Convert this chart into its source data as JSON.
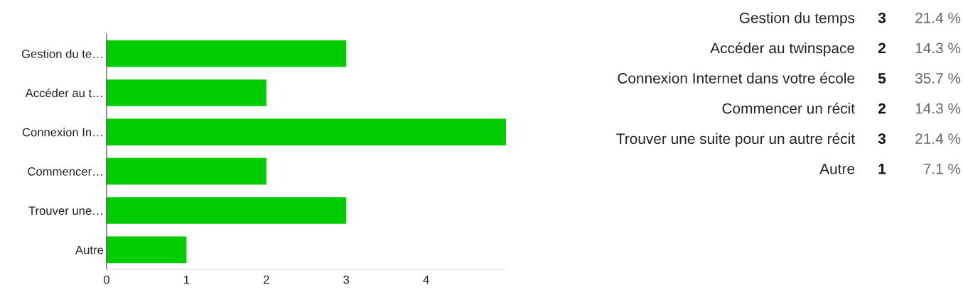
{
  "chart_data": [
    {
      "type": "bar",
      "orientation": "horizontal",
      "categories": [
        "Gestion du te…",
        "Accéder au t…",
        "Connexion In…",
        "Commencer…",
        "Trouver une…",
        "Autre"
      ],
      "values": [
        3,
        2,
        5,
        2,
        3,
        1
      ],
      "color": "#00cc00",
      "xlim": [
        0,
        5
      ],
      "xticks": [
        0,
        1,
        2,
        3,
        4
      ],
      "grid": false,
      "legend": false
    },
    {
      "type": "other",
      "annotations": [
        "Gestion du temps",
        "3",
        "21.4 %",
        "Accéder au twinspace",
        "2",
        "14.3 %",
        "Connexion Internet dans votre école",
        "5",
        "35.7 %",
        "Commencer un récit",
        "2",
        "14.3 %",
        "Trouver une suite pour un autre récit",
        "3",
        "21.4 %",
        "Autre",
        "1",
        "7.1 %"
      ]
    }
  ]
}
